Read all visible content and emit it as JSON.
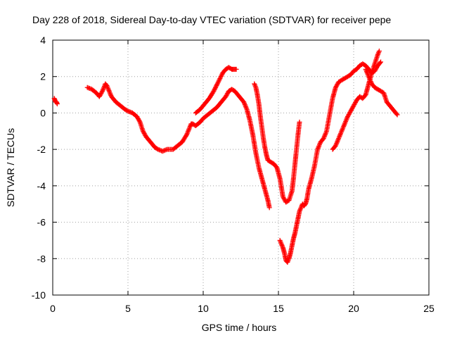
{
  "chart_data": {
    "type": "scatter",
    "title": "Day 228 of 2018, Sidereal Day-to-day VTEC variation (SDTVAR) for receiver pepe",
    "xlabel": "GPS time / hours",
    "ylabel": "SDTVAR / TECUs",
    "xlim": [
      0,
      25
    ],
    "ylim": [
      -10,
      4
    ],
    "xticks": [
      0,
      5,
      10,
      15,
      20,
      25
    ],
    "yticks": [
      -10,
      -8,
      -6,
      -4,
      -2,
      0,
      2,
      4
    ],
    "grid": true,
    "marker": "+",
    "marker_color": "#ff0000",
    "series": [
      {
        "segments": [
          {
            "x": [
              0.1,
              0.15,
              0.2,
              0.25,
              0.3
            ],
            "y": [
              0.8,
              0.7,
              0.6,
              0.6,
              0.5
            ]
          },
          {
            "x": [
              2.3,
              2.6,
              2.9,
              3.1,
              3.3,
              3.5,
              3.6,
              3.8,
              3.9,
              4.0,
              4.2,
              4.5,
              4.8,
              5.0,
              5.3,
              5.6,
              5.8,
              6.0,
              6.2,
              6.3,
              6.5,
              6.8,
              7.0,
              7.3,
              7.6,
              8.0,
              8.3,
              8.6,
              8.9,
              9.1,
              9.2,
              9.3,
              9.5,
              9.8,
              10.0,
              10.3,
              10.6,
              10.9,
              11.1,
              11.3,
              11.5,
              11.7,
              11.9,
              12.1,
              12.3,
              12.5,
              12.7,
              12.9,
              13.1,
              13.3,
              13.5,
              13.7,
              13.9,
              14.1,
              14.3,
              14.4
            ],
            "y": [
              1.4,
              1.3,
              1.1,
              0.9,
              1.2,
              1.6,
              1.5,
              1.1,
              0.9,
              0.8,
              0.6,
              0.4,
              0.2,
              0.1,
              0.0,
              -0.2,
              -0.5,
              -1.0,
              -1.3,
              -1.4,
              -1.6,
              -1.9,
              -2.0,
              -2.1,
              -2.0,
              -2.0,
              -1.8,
              -1.6,
              -1.2,
              -0.8,
              -0.6,
              -0.6,
              -0.7,
              -0.5,
              -0.3,
              -0.1,
              0.1,
              0.3,
              0.5,
              0.7,
              0.9,
              1.2,
              1.3,
              1.2,
              1.0,
              0.8,
              0.6,
              0.2,
              -0.4,
              -1.2,
              -2.2,
              -3.0,
              -3.6,
              -4.2,
              -4.8,
              -5.2
            ]
          },
          {
            "x": [
              9.5,
              9.8,
              10.1,
              10.4,
              10.7,
              11.0,
              11.3,
              11.5,
              11.7,
              11.9,
              12.0,
              12.2
            ],
            "y": [
              0.0,
              0.2,
              0.5,
              0.8,
              1.2,
              1.7,
              2.2,
              2.4,
              2.5,
              2.4,
              2.4,
              2.4
            ]
          },
          {
            "x": [
              13.4,
              13.5,
              13.6,
              13.7,
              13.8,
              13.9,
              14.0,
              14.1,
              14.2,
              14.3,
              14.5,
              14.7,
              14.9,
              15.1,
              15.3,
              15.5,
              15.7,
              15.9,
              16.0,
              16.1,
              16.2,
              16.3,
              16.4
            ],
            "y": [
              1.6,
              1.4,
              1.0,
              0.5,
              -0.2,
              -0.8,
              -1.4,
              -1.9,
              -2.3,
              -2.6,
              -2.7,
              -2.8,
              -3.0,
              -3.6,
              -4.6,
              -4.9,
              -4.8,
              -4.3,
              -3.6,
              -2.8,
              -2.0,
              -1.2,
              -0.5
            ]
          },
          {
            "x": [
              15.1,
              15.2,
              15.3,
              15.4,
              15.5,
              15.6,
              15.7,
              15.8,
              15.9,
              16.0,
              16.1,
              16.2,
              16.3,
              16.4,
              16.5,
              16.6,
              16.7,
              16.8,
              16.9,
              17.0,
              17.2,
              17.4,
              17.6,
              17.8,
              18.0,
              18.2,
              18.4,
              18.6,
              18.8,
              19.0,
              19.2,
              19.4,
              19.6,
              19.8,
              20.0,
              20.2,
              20.4,
              20.6,
              20.8,
              21.0,
              21.2,
              21.4,
              21.6,
              21.8
            ],
            "y": [
              -7.0,
              -7.2,
              -7.4,
              -7.7,
              -8.1,
              -8.2,
              -8.0,
              -7.7,
              -7.3,
              -6.9,
              -6.6,
              -6.2,
              -5.8,
              -5.4,
              -5.2,
              -5.0,
              -5.1,
              -5.0,
              -4.7,
              -4.2,
              -3.6,
              -2.9,
              -2.0,
              -1.6,
              -1.4,
              -1.0,
              -0.1,
              0.8,
              1.4,
              1.7,
              1.8,
              1.9,
              2.0,
              2.1,
              2.3,
              2.4,
              2.6,
              2.7,
              2.6,
              2.4,
              2.2,
              2.3,
              2.6,
              2.8
            ]
          },
          {
            "x": [
              18.6,
              18.8,
              19.0,
              19.2,
              19.4,
              19.6,
              19.8,
              20.0,
              20.2,
              20.4,
              20.6,
              20.8,
              21.0,
              21.2,
              21.4,
              21.6,
              21.7
            ],
            "y": [
              -2.0,
              -1.8,
              -1.4,
              -1.0,
              -0.6,
              -0.2,
              0.1,
              0.4,
              0.7,
              0.9,
              0.8,
              1.0,
              1.6,
              2.2,
              2.7,
              3.2,
              3.4
            ]
          },
          {
            "x": [
              20.8,
              21.0,
              21.2,
              21.4,
              21.6,
              21.8,
              22.0,
              22.2,
              22.4,
              22.6,
              22.8,
              22.9
            ],
            "y": [
              2.4,
              2.0,
              1.6,
              1.4,
              1.3,
              1.2,
              1.1,
              0.6,
              0.4,
              0.2,
              0.0,
              -0.1
            ]
          }
        ]
      }
    ]
  }
}
